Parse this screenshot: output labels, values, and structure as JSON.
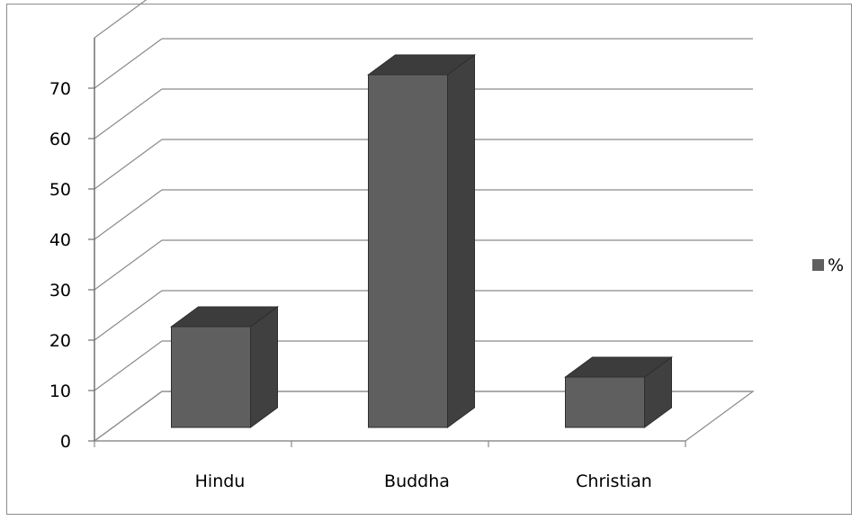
{
  "chart_data": {
    "type": "bar",
    "categories": [
      "Hindu",
      "Buddha",
      "Christian"
    ],
    "series": [
      {
        "name": "%",
        "values": [
          20,
          70,
          10
        ]
      }
    ],
    "ylim": [
      0,
      70
    ],
    "yticks": [
      0,
      10,
      20,
      30,
      40,
      50,
      60,
      70
    ],
    "grid": true,
    "legend": "right",
    "bar_color": "#5f5f5f",
    "bar_top_color": "#3c3c3c",
    "bar_side_color": "#404040"
  }
}
